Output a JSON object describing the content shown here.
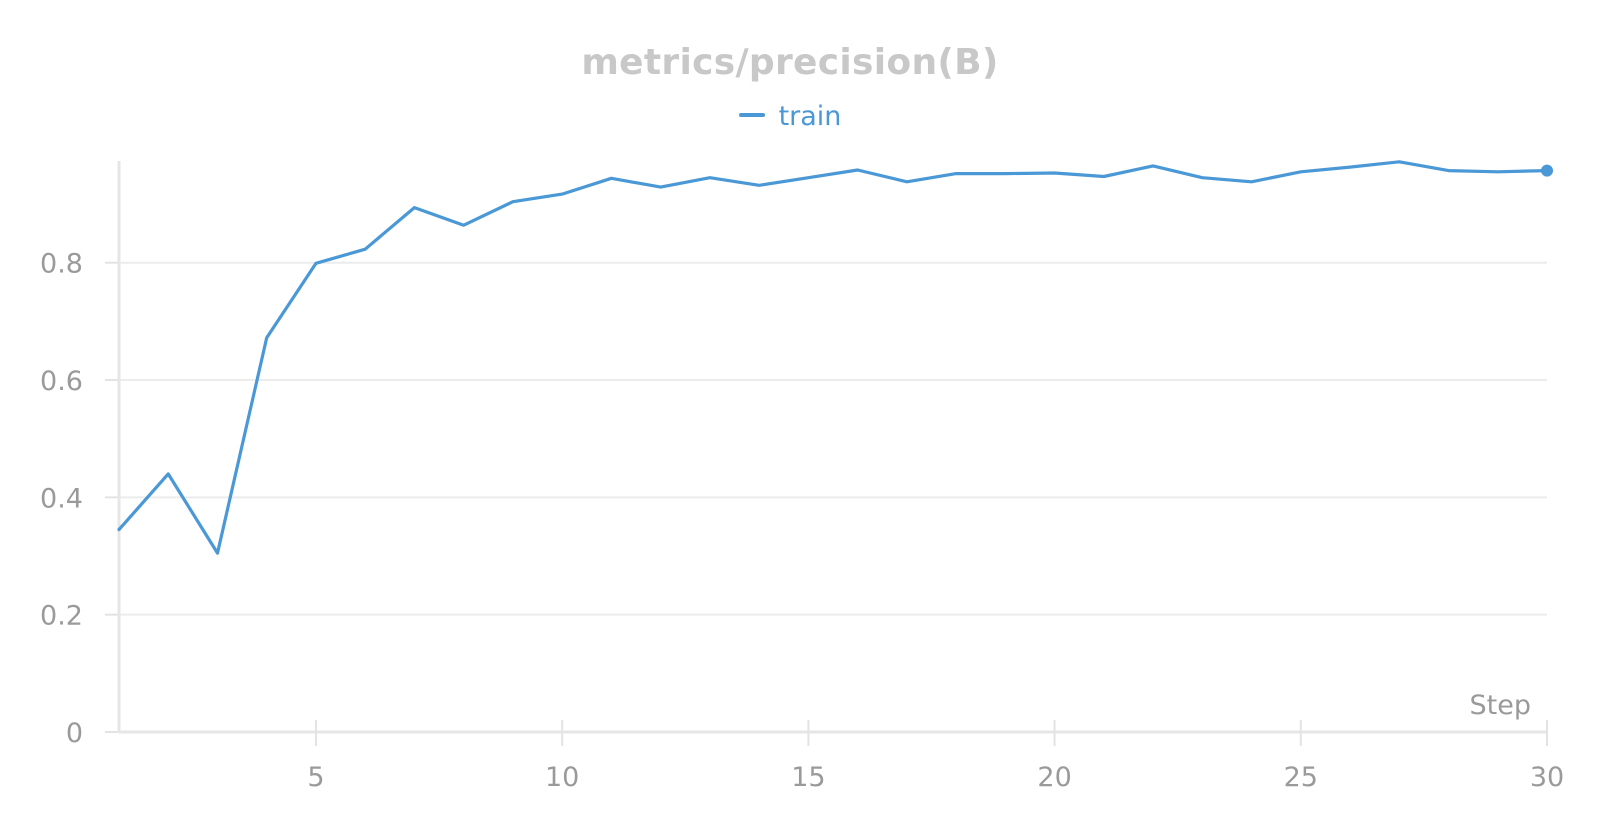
{
  "chart_data": {
    "type": "line",
    "title": "metrics/precision(B)",
    "xlabel": "Step",
    "ylabel": "",
    "xlim": [
      1,
      30
    ],
    "ylim": [
      0,
      0.97
    ],
    "xticks": [
      5,
      10,
      15,
      20,
      25,
      30
    ],
    "yticks": [
      0,
      0.2,
      0.4,
      0.6,
      0.8
    ],
    "ytick_labels": [
      "0",
      "0.2",
      "0.4",
      "0.6",
      "0.8"
    ],
    "xtick_labels": [
      "5",
      "10",
      "15",
      "20",
      "25",
      "30"
    ],
    "grid": true,
    "legend_position": "top-center",
    "series": [
      {
        "name": "train",
        "color": "#4a98d6",
        "x": [
          1,
          2,
          3,
          4,
          5,
          6,
          7,
          8,
          9,
          10,
          11,
          12,
          13,
          14,
          15,
          16,
          17,
          18,
          19,
          20,
          21,
          22,
          23,
          24,
          25,
          26,
          27,
          28,
          29,
          30
        ],
        "values": [
          0.345,
          0.44,
          0.305,
          0.672,
          0.799,
          0.823,
          0.894,
          0.864,
          0.904,
          0.917,
          0.944,
          0.929,
          0.945,
          0.932,
          0.945,
          0.958,
          0.938,
          0.952,
          0.952,
          0.953,
          0.947,
          0.965,
          0.945,
          0.938,
          0.955,
          0.963,
          0.972,
          0.957,
          0.955,
          0.957
        ]
      }
    ]
  }
}
